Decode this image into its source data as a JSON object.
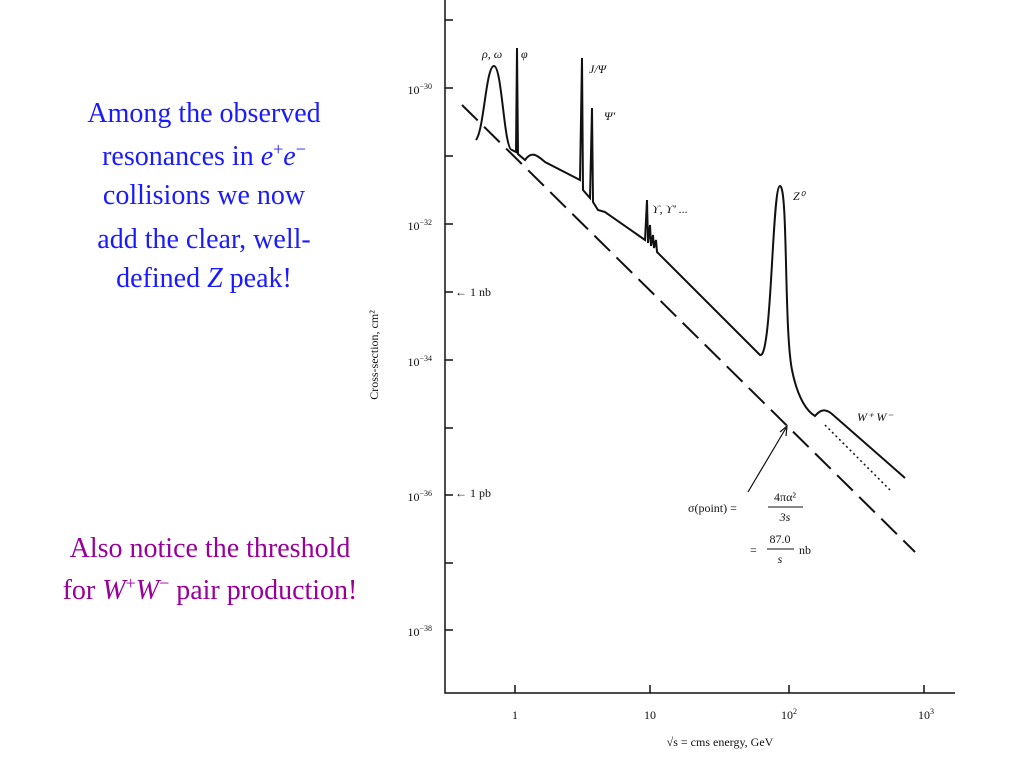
{
  "slide": {
    "note_top": [
      [
        "Among the observed"
      ],
      [
        "resonances in ",
        "e",
        "+",
        "e",
        "−"
      ],
      [
        "collisions we now"
      ],
      [
        "add the clear, well-"
      ],
      [
        "defined ",
        "Z",
        " peak!"
      ]
    ],
    "note_bottom": [
      [
        "Also notice the threshold"
      ],
      [
        "for ",
        "W",
        "+",
        "W",
        "−",
        " pair production!"
      ]
    ],
    "figure": {
      "y_axis_label": "Cross-section, cm²",
      "x_axis_label": "√s = cms energy, GeV",
      "y_tick_labels": [
        [
          "10",
          "−30"
        ],
        [
          "10",
          "−32"
        ],
        [
          "10",
          "−34"
        ],
        [
          "10",
          "−36"
        ],
        [
          "10",
          "−38"
        ]
      ],
      "x_tick_labels": [
        [
          "1",
          ""
        ],
        [
          "10",
          ""
        ],
        [
          "10",
          "2"
        ],
        [
          "10",
          "3"
        ]
      ],
      "unit_markers": [
        "← 1 nb",
        "← 1 pb"
      ],
      "peak_labels": [
        "ρ, ω",
        "φ",
        "J/Ψ",
        "Ψ′",
        "ϒ, ϒ′ ...",
        "Z⁰",
        "W⁺ W⁻"
      ],
      "formula": {
        "lhs": "σ(point) =",
        "num1": "4πα²",
        "den1": "3s",
        "eq2": "=",
        "num2": "87.0",
        "den2": "s",
        "unit": "nb"
      }
    }
  }
}
